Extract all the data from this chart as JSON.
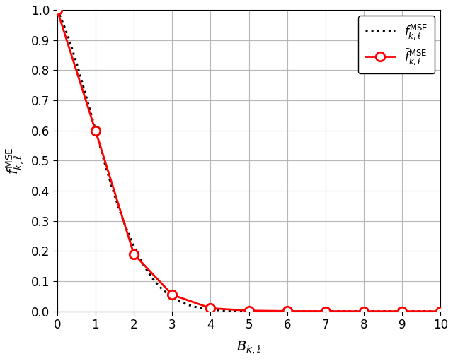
{
  "title": "",
  "xlabel": "$B_{k,\\ell}$",
  "ylabel": "$f_{k,\\ell}^{\\mathrm{MSE}}$",
  "xlim": [
    0,
    10
  ],
  "ylim": [
    0,
    1
  ],
  "yticks": [
    0,
    0.1,
    0.2,
    0.3,
    0.4,
    0.5,
    0.6,
    0.7,
    0.8,
    0.9,
    1.0
  ],
  "xticks": [
    0,
    1,
    2,
    3,
    4,
    5,
    6,
    7,
    8,
    9,
    10
  ],
  "x_markers": [
    0,
    1,
    2,
    3,
    4,
    5,
    6,
    7,
    8,
    9,
    10
  ],
  "y_markers": [
    1.0,
    0.6,
    0.19,
    0.055,
    0.01,
    0.002,
    0.0004,
    0.0001,
    3e-05,
    8e-06,
    2e-06
  ],
  "background_color": "#ffffff",
  "grid_color": "#b0b0b0",
  "line1_color": "#000000",
  "line2_color": "#ff0000",
  "legend1": "$f_{k,\\ell}^{\\mathrm{MSE}}$",
  "legend2": "$\\tilde{f}_{k,\\ell}^{\\mathrm{MSE}}$",
  "figsize": [
    6.4,
    5.11
  ],
  "dpi": 100
}
